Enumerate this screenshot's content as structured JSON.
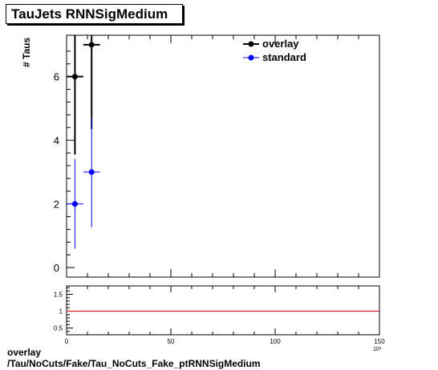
{
  "title": "TauJets RNNSigMedium",
  "footer": {
    "line1": "overlay",
    "line2": "/Tau/NoCuts/Fake/Tau_NoCuts_Fake_ptRNNSigMedium"
  },
  "chart_data": [
    {
      "type": "scatter",
      "ylabel": "# Taus",
      "xlim": [
        0,
        150
      ],
      "ylim": [
        -0.3,
        7.3
      ],
      "yticks": [
        0,
        2,
        4,
        6
      ],
      "legend_position": "top-right",
      "series": [
        {
          "name": "overlay",
          "color": "#000000",
          "points": [
            {
              "x": 4,
              "xerr": 4,
              "y": 6,
              "ylo": 3.55,
              "yhi": 8.45
            },
            {
              "x": 12,
              "xerr": 4,
              "y": 7,
              "ylo": 4.35,
              "yhi": 9.65
            }
          ]
        },
        {
          "name": "standard",
          "color": "#0000ff",
          "points": [
            {
              "x": 4,
              "xerr": 4,
              "y": 2,
              "ylo": 0.59,
              "yhi": 3.41
            },
            {
              "x": 12,
              "xerr": 4,
              "y": 3,
              "ylo": 1.27,
              "yhi": 4.73
            }
          ]
        }
      ]
    },
    {
      "type": "line",
      "xlim": [
        0,
        150
      ],
      "ylim": [
        0.3,
        1.75
      ],
      "xticks": [
        0,
        50,
        100,
        150
      ],
      "yticks": [
        0.5,
        1,
        1.5
      ],
      "reference_line": {
        "y": 1,
        "color": "#cc0000"
      }
    }
  ]
}
